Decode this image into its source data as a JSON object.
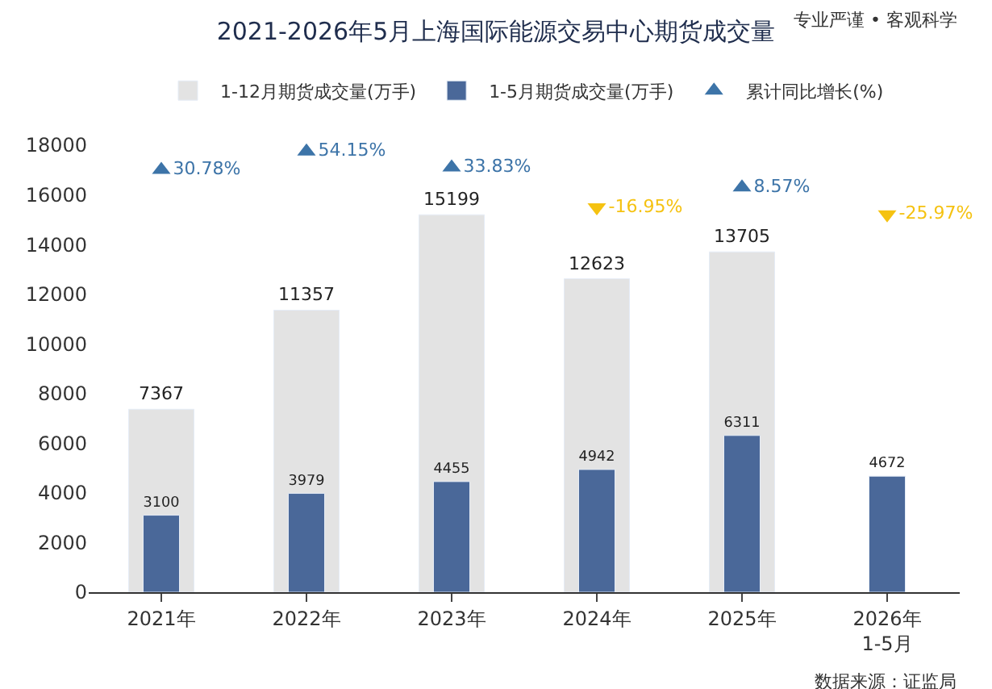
{
  "chart_data": {
    "type": "bar",
    "title": "2021-2026年5月上海国际能源交易中心期货成交量",
    "categories": [
      "2021年",
      "2022年",
      "2023年",
      "2024年",
      "2025年",
      "2026年\n1-5月"
    ],
    "series": [
      {
        "name": "1-12月期货成交量(万手)",
        "color": "#e3e3e3",
        "values": [
          7367,
          11357,
          15199,
          12623,
          13705,
          null
        ]
      },
      {
        "name": "1-5月期货成交量(万手)",
        "color": "#4a6899",
        "values": [
          3100,
          3979,
          4455,
          4942,
          6311,
          4672
        ]
      },
      {
        "name": "累计同比增长(%)",
        "type": "scatter",
        "axis": "y2",
        "colors": [
          "#3d74a8",
          "#3d74a8",
          "#3d74a8",
          "#f5c211",
          "#3d74a8",
          "#f5c211"
        ],
        "values": [
          30.78,
          54.15,
          33.83,
          -16.95,
          8.57,
          -25.97
        ],
        "value_labels": [
          "30.78%",
          "54.15%",
          "33.83%",
          "-16.95%",
          "8.57%",
          "-25.97%"
        ]
      }
    ],
    "ylim": [
      0,
      18000
    ],
    "yticks": [
      0,
      2000,
      4000,
      6000,
      8000,
      10000,
      12000,
      14000,
      16000,
      18000
    ],
    "data_labels": true,
    "legend": "top",
    "annotations": [
      "专业严谨 • 客观科学",
      "数据来源：证监局"
    ]
  }
}
